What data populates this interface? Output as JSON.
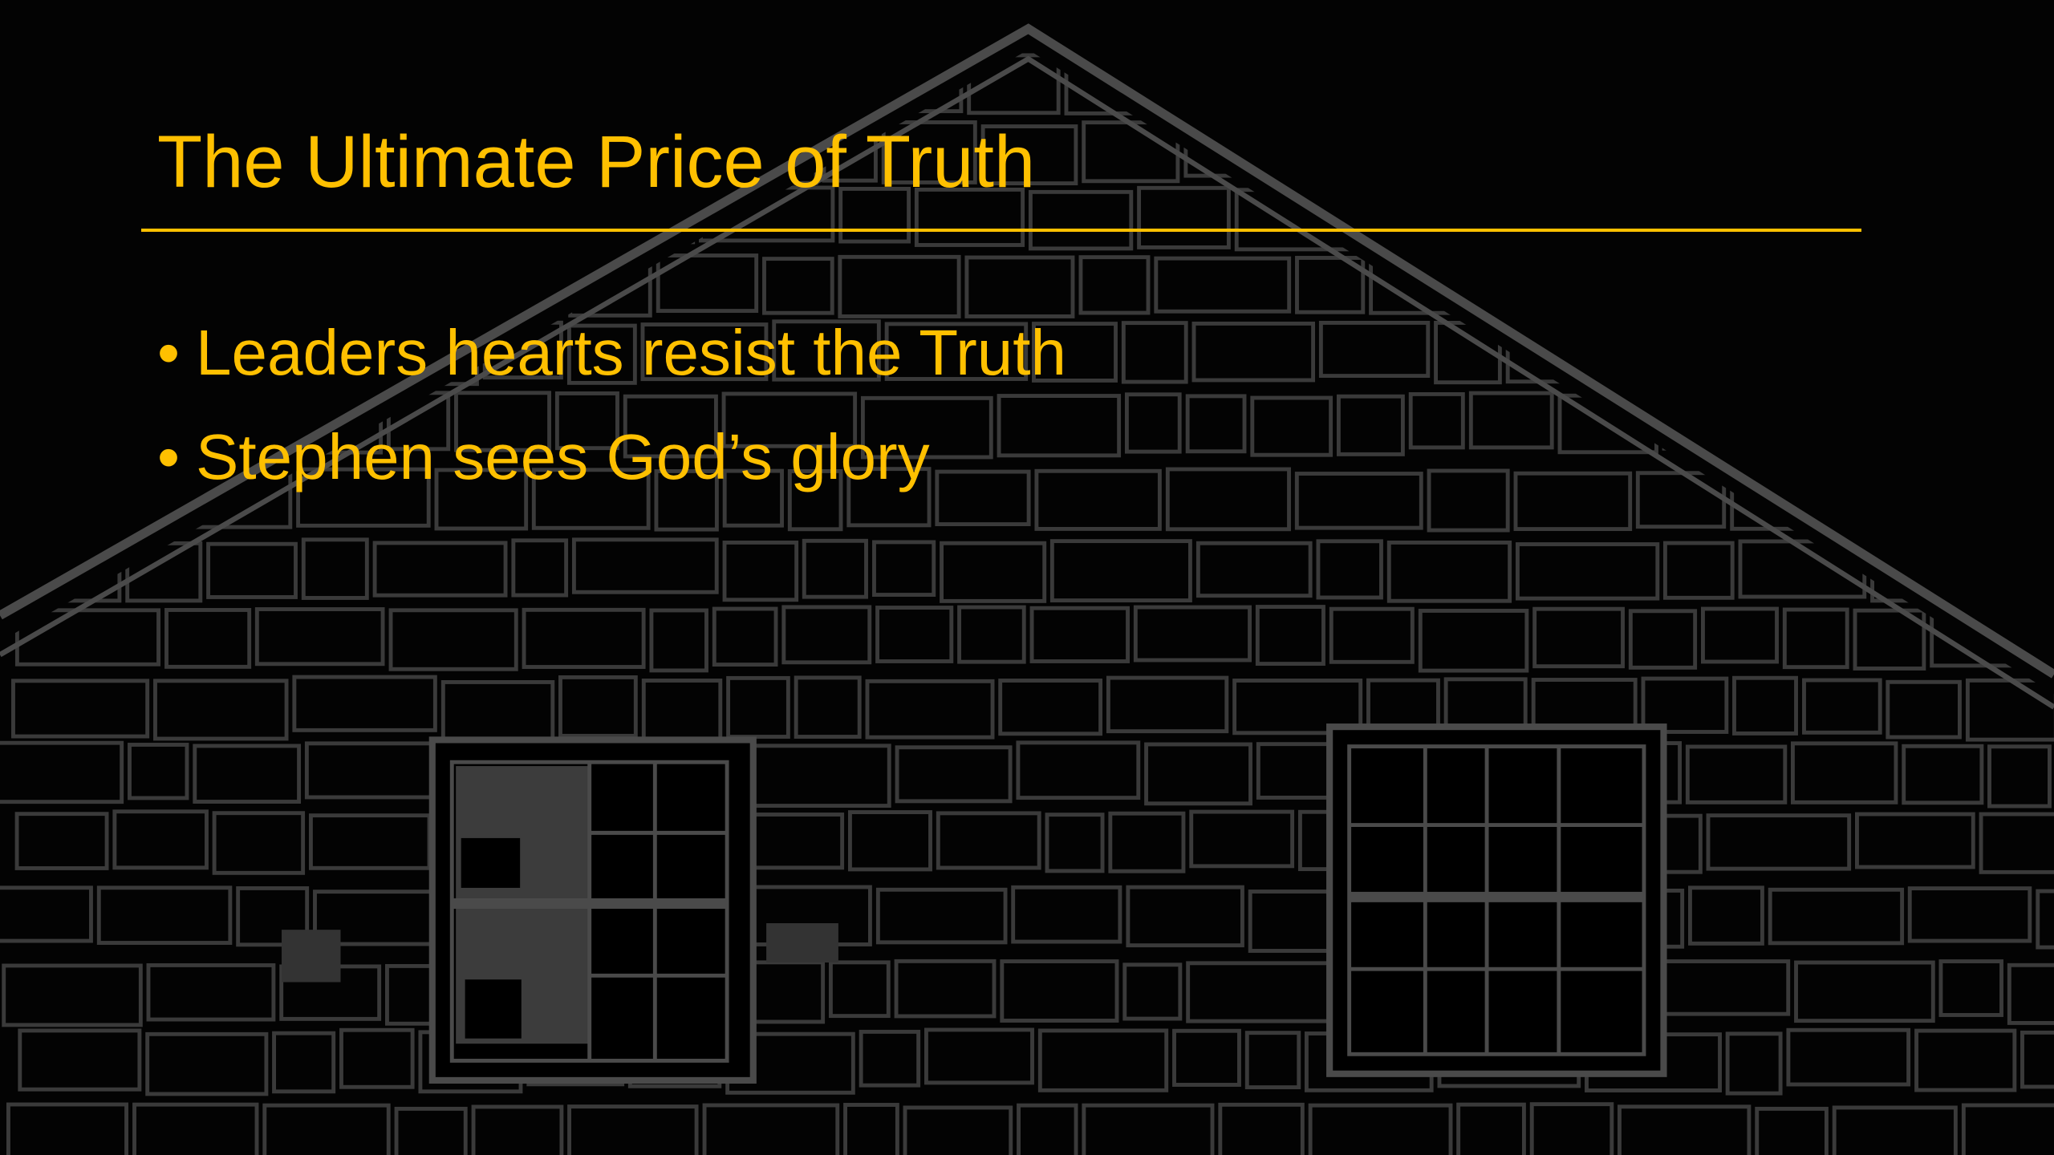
{
  "title": "The Ultimate Price of Truth",
  "bullets": [
    "Leaders hearts resist the Truth",
    "Stephen sees God’s glory"
  ]
}
